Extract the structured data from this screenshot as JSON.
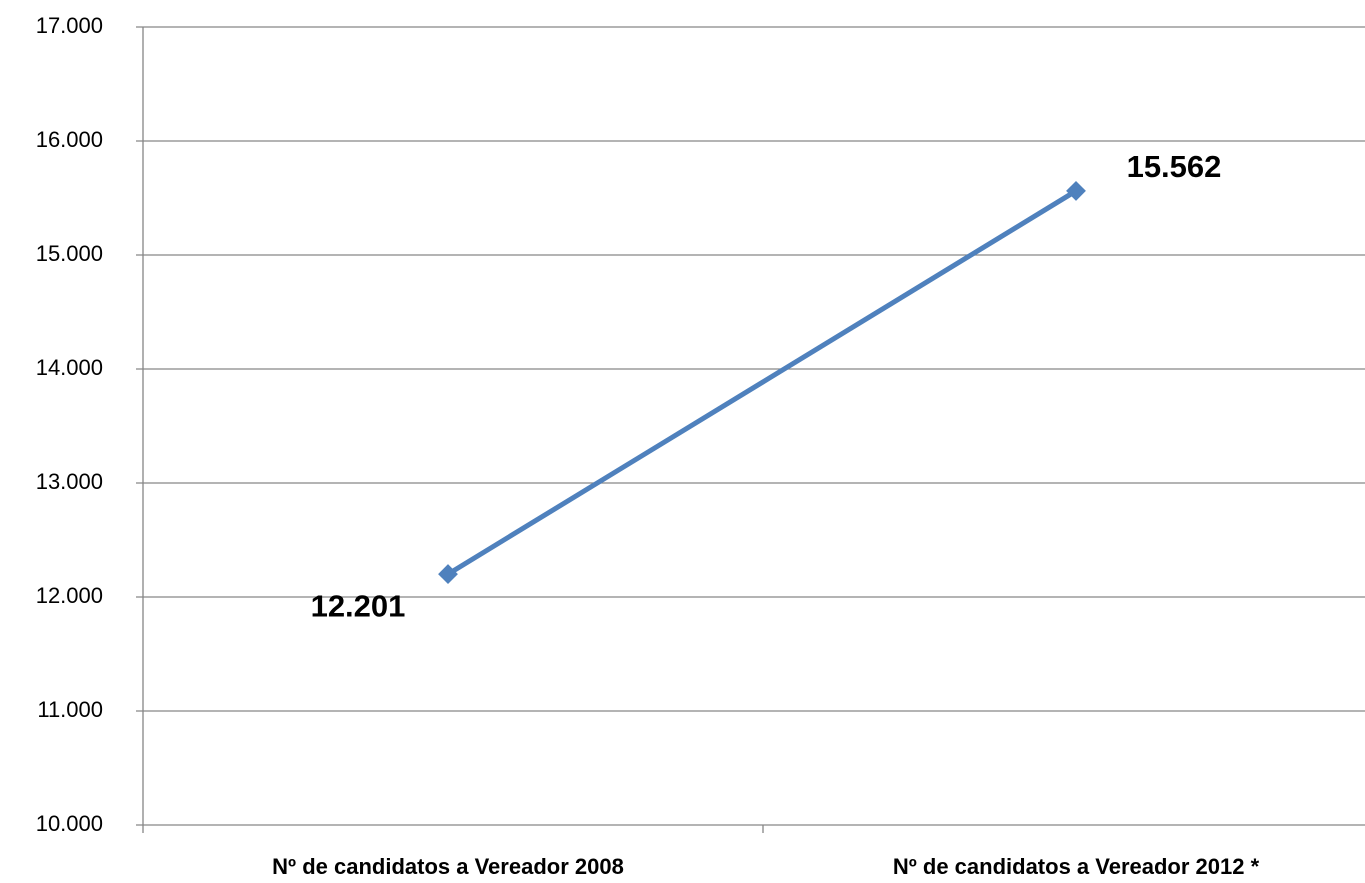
{
  "chart_data": {
    "type": "line",
    "categories": [
      "Nº de candidatos a Vereador 2008",
      "Nº de candidatos a Vereador 2012 *"
    ],
    "values": [
      12201,
      15562
    ],
    "value_labels": [
      "12.201",
      "15.562"
    ],
    "color": "#4f81bd",
    "ylim": [
      10000,
      17000
    ],
    "yticks": [
      {
        "value": 10000,
        "label": "10.000"
      },
      {
        "value": 11000,
        "label": "11.000"
      },
      {
        "value": 12000,
        "label": "12.000"
      },
      {
        "value": 13000,
        "label": "13.000"
      },
      {
        "value": 14000,
        "label": "14.000"
      },
      {
        "value": 15000,
        "label": "15.000"
      },
      {
        "value": 16000,
        "label": "16.000"
      },
      {
        "value": 17000,
        "label": "17.000"
      }
    ],
    "grid": true
  }
}
